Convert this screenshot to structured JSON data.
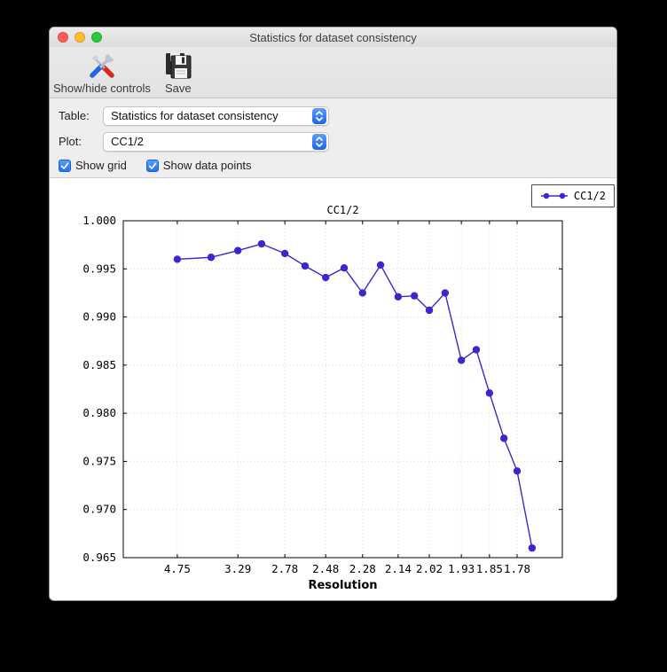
{
  "window": {
    "title": "Statistics for dataset consistency"
  },
  "toolbar": {
    "buttons": [
      {
        "label": "Show/hide controls",
        "icon": "tools-icon"
      },
      {
        "label": "Save",
        "icon": "floppy-disk-icon"
      }
    ]
  },
  "controls": {
    "table": {
      "label": "Table:",
      "value": "Statistics for dataset consistency"
    },
    "plot": {
      "label": "Plot:",
      "value": "CC1/2"
    },
    "checkboxes": [
      {
        "label": "Show grid",
        "checked": true
      },
      {
        "label": "Show data points",
        "checked": true
      }
    ],
    "accent_color": "#2e7bf6"
  },
  "chart_data": {
    "type": "line",
    "title": "CC1/2",
    "xlabel": "Resolution",
    "ylabel": "",
    "grid": true,
    "markers": true,
    "line_color": "#3a28cd",
    "grid_color": "#d8d8d8",
    "ylim": [
      0.965,
      1.0
    ],
    "yticks": [
      "1.000",
      "0.995",
      "0.990",
      "0.985",
      "0.980",
      "0.975",
      "0.970",
      "0.965"
    ],
    "xticks": [
      {
        "label": "4.75",
        "point_index": 0
      },
      {
        "label": "3.29",
        "point_index": 2
      },
      {
        "label": "2.78",
        "point_index": 4
      },
      {
        "label": "2.48",
        "point_index": 6
      },
      {
        "label": "2.28",
        "point_index": 8
      },
      {
        "label": "2.14",
        "point_index": 10
      },
      {
        "label": "2.02",
        "point_index": 12
      },
      {
        "label": "1.93",
        "point_index": 14
      },
      {
        "label": "1.85",
        "point_index": 16
      },
      {
        "label": "1.78",
        "point_index": 18
      }
    ],
    "legend": [
      {
        "label": "CC1/2",
        "color": "#3a28cd"
      }
    ],
    "points": [
      {
        "xf": 0.123,
        "y": 0.996
      },
      {
        "xf": 0.2,
        "y": 0.9962
      },
      {
        "xf": 0.261,
        "y": 0.9969
      },
      {
        "xf": 0.315,
        "y": 0.9976
      },
      {
        "xf": 0.368,
        "y": 0.9966
      },
      {
        "xf": 0.414,
        "y": 0.9953
      },
      {
        "xf": 0.461,
        "y": 0.9941
      },
      {
        "xf": 0.503,
        "y": 0.9951
      },
      {
        "xf": 0.545,
        "y": 0.9925
      },
      {
        "xf": 0.586,
        "y": 0.9954
      },
      {
        "xf": 0.626,
        "y": 0.9921
      },
      {
        "xf": 0.663,
        "y": 0.9922
      },
      {
        "xf": 0.697,
        "y": 0.9907
      },
      {
        "xf": 0.733,
        "y": 0.9925
      },
      {
        "xf": 0.77,
        "y": 0.9855
      },
      {
        "xf": 0.804,
        "y": 0.9866
      },
      {
        "xf": 0.834,
        "y": 0.9821
      },
      {
        "xf": 0.867,
        "y": 0.9774
      },
      {
        "xf": 0.897,
        "y": 0.974
      },
      {
        "xf": 0.931,
        "y": 0.966
      }
    ]
  }
}
